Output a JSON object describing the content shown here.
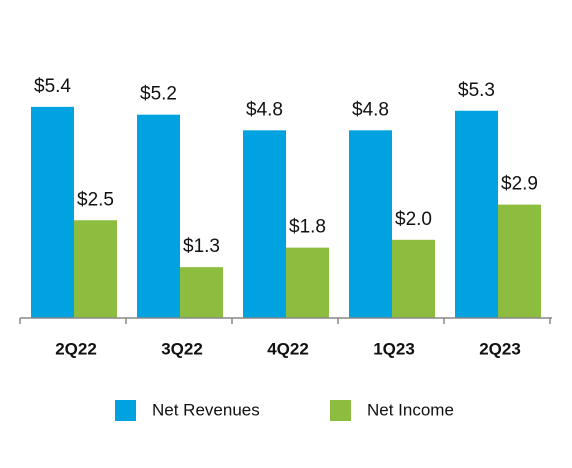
{
  "chart_data": {
    "type": "bar",
    "categories": [
      "2Q22",
      "3Q22",
      "4Q22",
      "1Q23",
      "2Q23"
    ],
    "series": [
      {
        "name": "Net Revenues",
        "color": "#00a3e0",
        "values": [
          5.4,
          5.2,
          4.8,
          4.8,
          5.3
        ],
        "value_labels": [
          "$5.4",
          "$5.2",
          "$4.8",
          "$4.8",
          "$5.3"
        ]
      },
      {
        "name": "Net Income",
        "color": "#8cbd3f",
        "values": [
          2.5,
          1.3,
          1.8,
          2.0,
          2.9
        ],
        "value_labels": [
          "$2.5",
          "$1.3",
          "$1.8",
          "$2.0",
          "$2.9"
        ]
      }
    ]
  }
}
